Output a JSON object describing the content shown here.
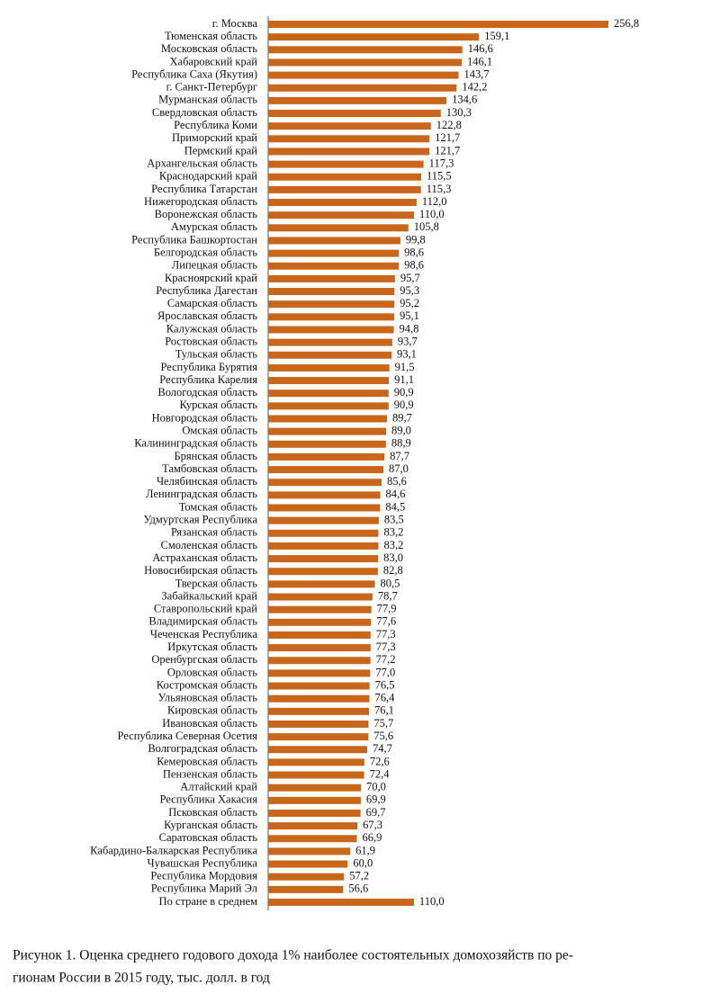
{
  "chart_data": {
    "type": "barh",
    "color": "#c8661c",
    "categories": [
      "г. Москва",
      "Тюменская область",
      "Московская область",
      "Хабаровский край",
      "Республика Саха (Якутия)",
      "г. Санкт-Петербург",
      "Мурманская область",
      "Свердловская область",
      "Республика Коми",
      "Приморский край",
      "Пермский край",
      "Архангельская область",
      "Краснодарский край",
      "Республика Татарстан",
      "Нижегородская область",
      "Воронежская область",
      "Амурская область",
      "Республика Башкортостан",
      "Белгородская область",
      "Липецкая область",
      "Красноярский край",
      "Республика Дагестан",
      "Самарская область",
      "Ярославская область",
      "Калужская область",
      "Ростовская область",
      "Тульская область",
      "Республика Бурятия",
      "Республика Карелия",
      "Вологодская область",
      "Курская область",
      "Новгородская область",
      "Омская область",
      "Калининградская область",
      "Брянская область",
      "Тамбовская область",
      "Челябинская область",
      "Ленинградская область",
      "Томская область",
      "Удмуртская Республика",
      "Рязанская область",
      "Смоленская область",
      "Астраханская область",
      "Новосибирская область",
      "Тверская область",
      "Забайкальский край",
      "Ставропольский край",
      "Владимирская область",
      "Чеченская Республика",
      "Иркутская область",
      "Оренбургская область",
      "Орловская область",
      "Костромская область",
      "Ульяновская область",
      "Кировская область",
      "Ивановская область",
      "Республика Северная Осетия",
      "Волгоградская область",
      "Кемеровская область",
      "Пензенская область",
      "Алтайский край",
      "Республика Хакасия",
      "Псковская область",
      "Курганская область",
      "Саратовская область",
      "Кабардино-Балкарская Республика",
      "Чувашская Республика",
      "Республика Мордовия",
      "Республика Марий Эл",
      "По стране в среднем"
    ],
    "values": [
      256.8,
      159.1,
      146.6,
      146.1,
      143.7,
      142.2,
      134.6,
      130.3,
      122.8,
      121.7,
      121.7,
      117.3,
      115.5,
      115.3,
      112.0,
      110.0,
      105.8,
      99.8,
      98.6,
      98.6,
      95.7,
      95.3,
      95.2,
      95.1,
      94.8,
      93.7,
      93.1,
      91.5,
      91.1,
      90.9,
      90.9,
      89.7,
      89.0,
      88.9,
      87.7,
      87.0,
      85.6,
      84.6,
      84.5,
      83.5,
      83.2,
      83.2,
      83.0,
      82.8,
      80.5,
      78.7,
      77.9,
      77.6,
      77.3,
      77.3,
      77.2,
      77.0,
      76.5,
      76.4,
      76.1,
      75.7,
      75.6,
      74.7,
      72.6,
      72.4,
      70.0,
      69.9,
      69.7,
      67.3,
      66.9,
      61.9,
      60.0,
      57.2,
      56.6,
      110.0
    ],
    "value_labels": [
      "256,8",
      "159,1",
      "146,6",
      "146,1",
      "143,7",
      "142,2",
      "134,6",
      "130,3",
      "122,8",
      "121,7",
      "121,7",
      "117,3",
      "115,5",
      "115,3",
      "112,0",
      "110,0",
      "105,8",
      "99,8",
      "98,6",
      "98,6",
      "95,7",
      "95,3",
      "95,2",
      "95,1",
      "94,8",
      "93,7",
      "93,1",
      "91,5",
      "91,1",
      "90,9",
      "90,9",
      "89,7",
      "89,0",
      "88,9",
      "87,7",
      "87,0",
      "85,6",
      "84,6",
      "84,5",
      "83,5",
      "83,2",
      "83,2",
      "83,0",
      "82,8",
      "80,5",
      "78,7",
      "77,9",
      "77,6",
      "77,3",
      "77,3",
      "77,2",
      "77,0",
      "76,5",
      "76,4",
      "76,1",
      "75,7",
      "75,6",
      "74,7",
      "72,6",
      "72,4",
      "70,0",
      "69,9",
      "69,7",
      "67,3",
      "66,9",
      "61,9",
      "60,0",
      "57,2",
      "56,6",
      "110,0"
    ],
    "caption": [
      "Рисунок 1. Оценка среднего годового дохода 1% наиболее состоятельных домохозяйств по ре-",
      "гионам России в 2015 году, тыс. долл. в год"
    ]
  }
}
